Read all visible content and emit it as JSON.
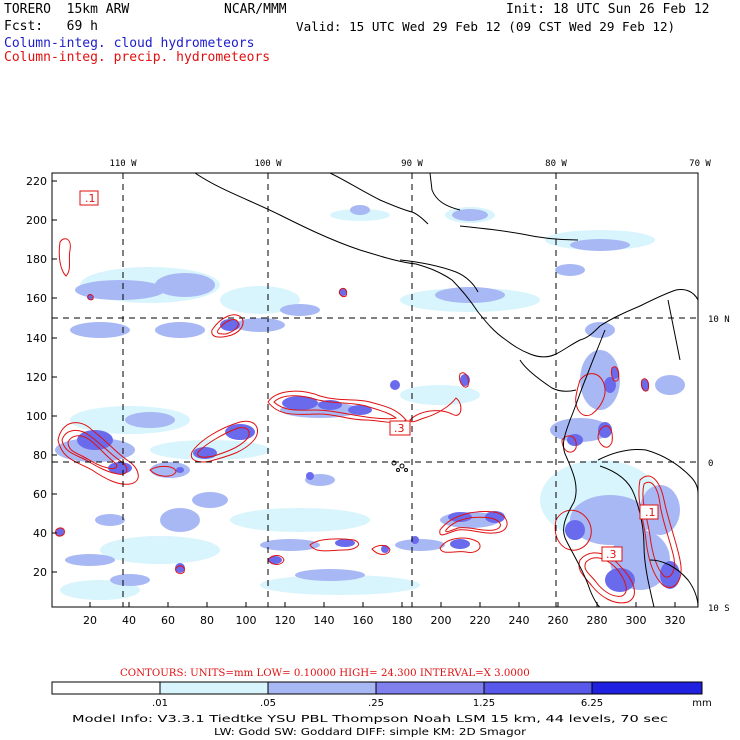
{
  "header": {
    "model": "TORERO  15km ARW",
    "center": "NCAR/MMM",
    "init": "Init: 18 UTC Sun 26 Feb 12",
    "fcst": "Fcst:   69 h",
    "valid": "Valid: 15 UTC Wed 29 Feb 12 (09 CST Wed 29 Feb 12)",
    "legend_cloud": "Column-integ. cloud hydrometeors",
    "legend_precip": "Column-integ. precip. hydrometeors"
  },
  "map": {
    "lon_labels": [
      "110 W",
      "100 W",
      "90 W",
      "80 W",
      "70 W"
    ],
    "lat_labels": [
      "10 N",
      "0",
      "10 S"
    ],
    "y_ticks": [
      "220",
      "200",
      "180",
      "160",
      "140",
      "120",
      "100",
      "80",
      "60",
      "40",
      "20"
    ],
    "x_ticks": [
      "20",
      "40",
      "60",
      "80",
      "100",
      "120",
      "140",
      "160",
      "180",
      "200",
      "220",
      "240",
      "260",
      "280",
      "300",
      "320"
    ],
    "contour_labels": [
      ".1",
      ".3",
      ".1",
      ".3"
    ]
  },
  "contour_info": {
    "text": "CONTOURS:  UNITS=mm  LOW= 0.10000      HIGH=  24.300     INTERVAL=X  3.0000"
  },
  "colorbar": {
    "levels": [
      ".01",
      ".05",
      ".25",
      "1.25",
      "6.25"
    ],
    "unit": "mm",
    "colors": [
      "#ffffff",
      "#d8f4fc",
      "#a8b8f4",
      "#8080ee",
      "#5858ea",
      "#2020e0"
    ]
  },
  "footer": {
    "line1": "Model Info: V3.3.1    Tiedtke YSU PBL  Thompson    Noah LSM  15 km,   44 levels,   70 sec",
    "line2": "LW: Godd SW: Goddard DIFF: simple KM: 2D Smagor"
  }
}
